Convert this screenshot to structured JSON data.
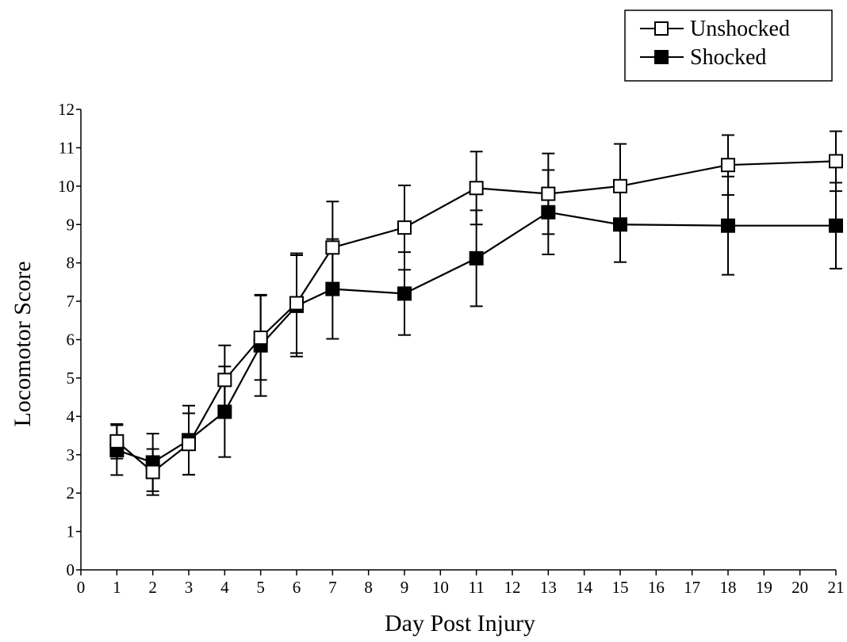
{
  "chart_data": {
    "type": "line",
    "title": "",
    "xlabel": "Day Post Injury",
    "ylabel": "Locomotor Score",
    "xlim": [
      0,
      21
    ],
    "ylim": [
      0,
      12
    ],
    "x_ticks": [
      0,
      1,
      2,
      3,
      4,
      5,
      6,
      7,
      8,
      9,
      10,
      11,
      12,
      13,
      14,
      15,
      16,
      17,
      18,
      19,
      20,
      21
    ],
    "y_ticks": [
      0,
      1,
      2,
      3,
      4,
      5,
      6,
      7,
      8,
      9,
      10,
      11,
      12
    ],
    "grid": false,
    "legend_position": "top-right",
    "series": [
      {
        "name": "Unshocked",
        "marker": "open-square",
        "x": [
          1,
          2,
          3,
          4,
          5,
          6,
          7,
          9,
          11,
          13,
          15,
          18,
          21
        ],
        "y": [
          3.35,
          2.55,
          3.28,
          4.95,
          6.05,
          6.95,
          8.4,
          8.92,
          9.95,
          9.8,
          10.0,
          10.55,
          10.65
        ],
        "error": [
          0.45,
          0.6,
          0.8,
          0.9,
          1.1,
          1.3,
          1.2,
          1.1,
          0.95,
          1.05,
          1.1,
          0.78,
          0.78
        ]
      },
      {
        "name": "Shocked",
        "marker": "filled-square",
        "x": [
          1,
          2,
          3,
          4,
          5,
          6,
          7,
          9,
          11,
          13,
          15,
          18,
          21
        ],
        "y": [
          3.12,
          2.8,
          3.38,
          4.12,
          5.85,
          6.88,
          7.32,
          7.2,
          8.12,
          9.32,
          9.0,
          8.97,
          8.97
        ],
        "error": [
          0.65,
          0.75,
          0.9,
          1.18,
          1.32,
          1.32,
          1.3,
          1.08,
          1.25,
          1.1,
          0.98,
          1.28,
          1.12
        ]
      }
    ]
  }
}
